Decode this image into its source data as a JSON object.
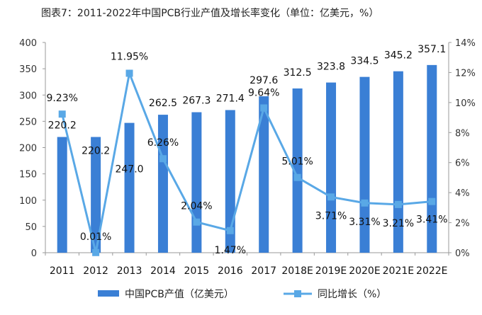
{
  "chart_data": {
    "type": "bar",
    "title": "图表7：2011-2022年中国PCB行业产值及增长率变化（单位：亿美元，%）",
    "categories": [
      "2011",
      "2012",
      "2013",
      "2014",
      "2015",
      "2016",
      "2017",
      "2018E",
      "2019E",
      "2020E",
      "2021E",
      "2022E"
    ],
    "series": [
      {
        "name": "中国PCB产值（亿美元）",
        "type": "bar",
        "axis": "left",
        "values": [
          220.2,
          220.2,
          247.0,
          262.5,
          267.3,
          271.4,
          297.6,
          312.5,
          323.8,
          334.5,
          345.2,
          357.1
        ],
        "labels": [
          "220.2",
          "220.2",
          "247.0",
          "262.5",
          "267.3",
          "271.4",
          "297.6",
          "312.5",
          "323.8",
          "334.5",
          "345.2",
          "357.1"
        ]
      },
      {
        "name": "同比增长（%）",
        "type": "line",
        "axis": "right",
        "values": [
          9.23,
          0.01,
          11.95,
          6.26,
          2.04,
          1.47,
          9.64,
          5.01,
          3.71,
          3.31,
          3.21,
          3.41
        ],
        "labels": [
          "9.23%",
          "0.01%",
          "11.95%",
          "6.26%",
          "2.04%",
          "1.47%",
          "9.64%",
          "5.01%",
          "3.71%",
          "3.31%",
          "3.21%",
          "3.41%"
        ]
      }
    ],
    "ylim_left": [
      0,
      400
    ],
    "yticks_left": [
      "0",
      "50",
      "100",
      "150",
      "200",
      "250",
      "300",
      "350",
      "400"
    ],
    "ylim_right": [
      0,
      14
    ],
    "yticks_right": [
      "0%",
      "2%",
      "4%",
      "6%",
      "8%",
      "10%",
      "12%",
      "14%"
    ],
    "grid": false,
    "legend": "bottom",
    "colors": {
      "bar": "#3a7fd5",
      "line": "#59a8e6"
    }
  }
}
